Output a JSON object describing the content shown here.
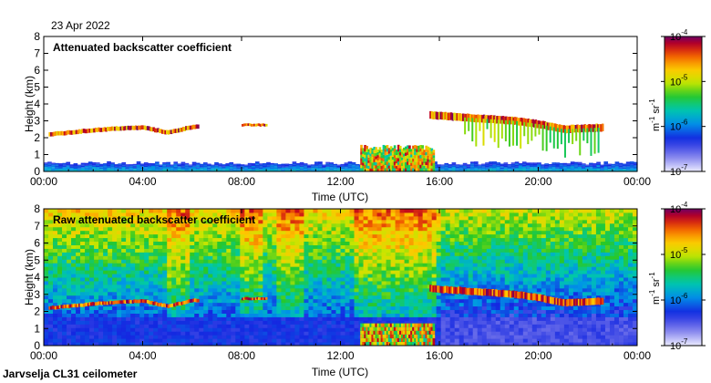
{
  "date_label": "23 Apr 2022",
  "footer": "Jarvselja CL31 ceilometer",
  "chart_data": [
    {
      "type": "heatmap",
      "title": "Attenuated backscatter coefficient",
      "xlabel": "Time (UTC)",
      "ylabel": "Height (km)",
      "xlim": [
        0,
        24
      ],
      "ylim": [
        0,
        8
      ],
      "x_ticks": [
        0,
        4,
        8,
        12,
        16,
        20,
        24
      ],
      "x_tick_labels": [
        "00:00",
        "04:00",
        "08:00",
        "12:00",
        "16:00",
        "20:00",
        "00:00"
      ],
      "y_ticks": [
        0,
        1,
        2,
        3,
        4,
        5,
        6,
        7,
        8
      ],
      "y_tick_labels": [
        "0",
        "1",
        "2",
        "3",
        "4",
        "5",
        "6",
        "7",
        "8"
      ],
      "colorbar": {
        "unit_base": "m",
        "unit_exp1": "-1",
        "unit_mid": " sr",
        "unit_exp2": "-1",
        "log_range": [
          -7,
          -4
        ],
        "ticks": [
          {
            "base": "10",
            "exp": "-4"
          },
          {
            "base": "10",
            "exp": "-5"
          },
          {
            "base": "10",
            "exp": "-6"
          },
          {
            "base": "10",
            "exp": "-7"
          }
        ]
      },
      "features": {
        "boundary_layer_top_km": 0.4,
        "cloud_layer_km": [
          [
            0.2,
            2.2
          ],
          [
            1.0,
            2.3
          ],
          [
            2.0,
            2.45
          ],
          [
            3.0,
            2.55
          ],
          [
            4.0,
            2.6
          ],
          [
            5.0,
            2.3
          ],
          [
            6.0,
            2.65
          ]
        ],
        "cloud_layer_2_km": [
          [
            16.0,
            3.3
          ],
          [
            17.0,
            3.2
          ],
          [
            18.0,
            3.1
          ],
          [
            19.0,
            3.0
          ],
          [
            20.0,
            2.8
          ],
          [
            21.0,
            2.5
          ],
          [
            22.5,
            2.6
          ]
        ],
        "precipitation_hours": [
          12.8,
          15.8
        ],
        "precipitation_top_km": 1.6
      }
    },
    {
      "type": "heatmap",
      "title": "Raw attenuated backscatter coefficient",
      "xlabel": "Time (UTC)",
      "ylabel": "Height (km)",
      "xlim": [
        0,
        24
      ],
      "ylim": [
        0,
        8
      ],
      "x_ticks": [
        0,
        4,
        8,
        12,
        16,
        20,
        24
      ],
      "x_tick_labels": [
        "00:00",
        "04:00",
        "08:00",
        "12:00",
        "16:00",
        "20:00",
        "00:00"
      ],
      "y_ticks": [
        0,
        1,
        2,
        3,
        4,
        5,
        6,
        7,
        8
      ],
      "y_tick_labels": [
        "0",
        "1",
        "2",
        "3",
        "4",
        "5",
        "6",
        "7",
        "8"
      ],
      "colorbar": {
        "unit_base": "m",
        "unit_exp1": "-1",
        "unit_mid": " sr",
        "unit_exp2": "-1",
        "log_range": [
          -7,
          -4
        ],
        "ticks": [
          {
            "base": "10",
            "exp": "-4"
          },
          {
            "base": "10",
            "exp": "-5"
          },
          {
            "base": "10",
            "exp": "-6"
          },
          {
            "base": "10",
            "exp": "-7"
          }
        ]
      }
    }
  ]
}
